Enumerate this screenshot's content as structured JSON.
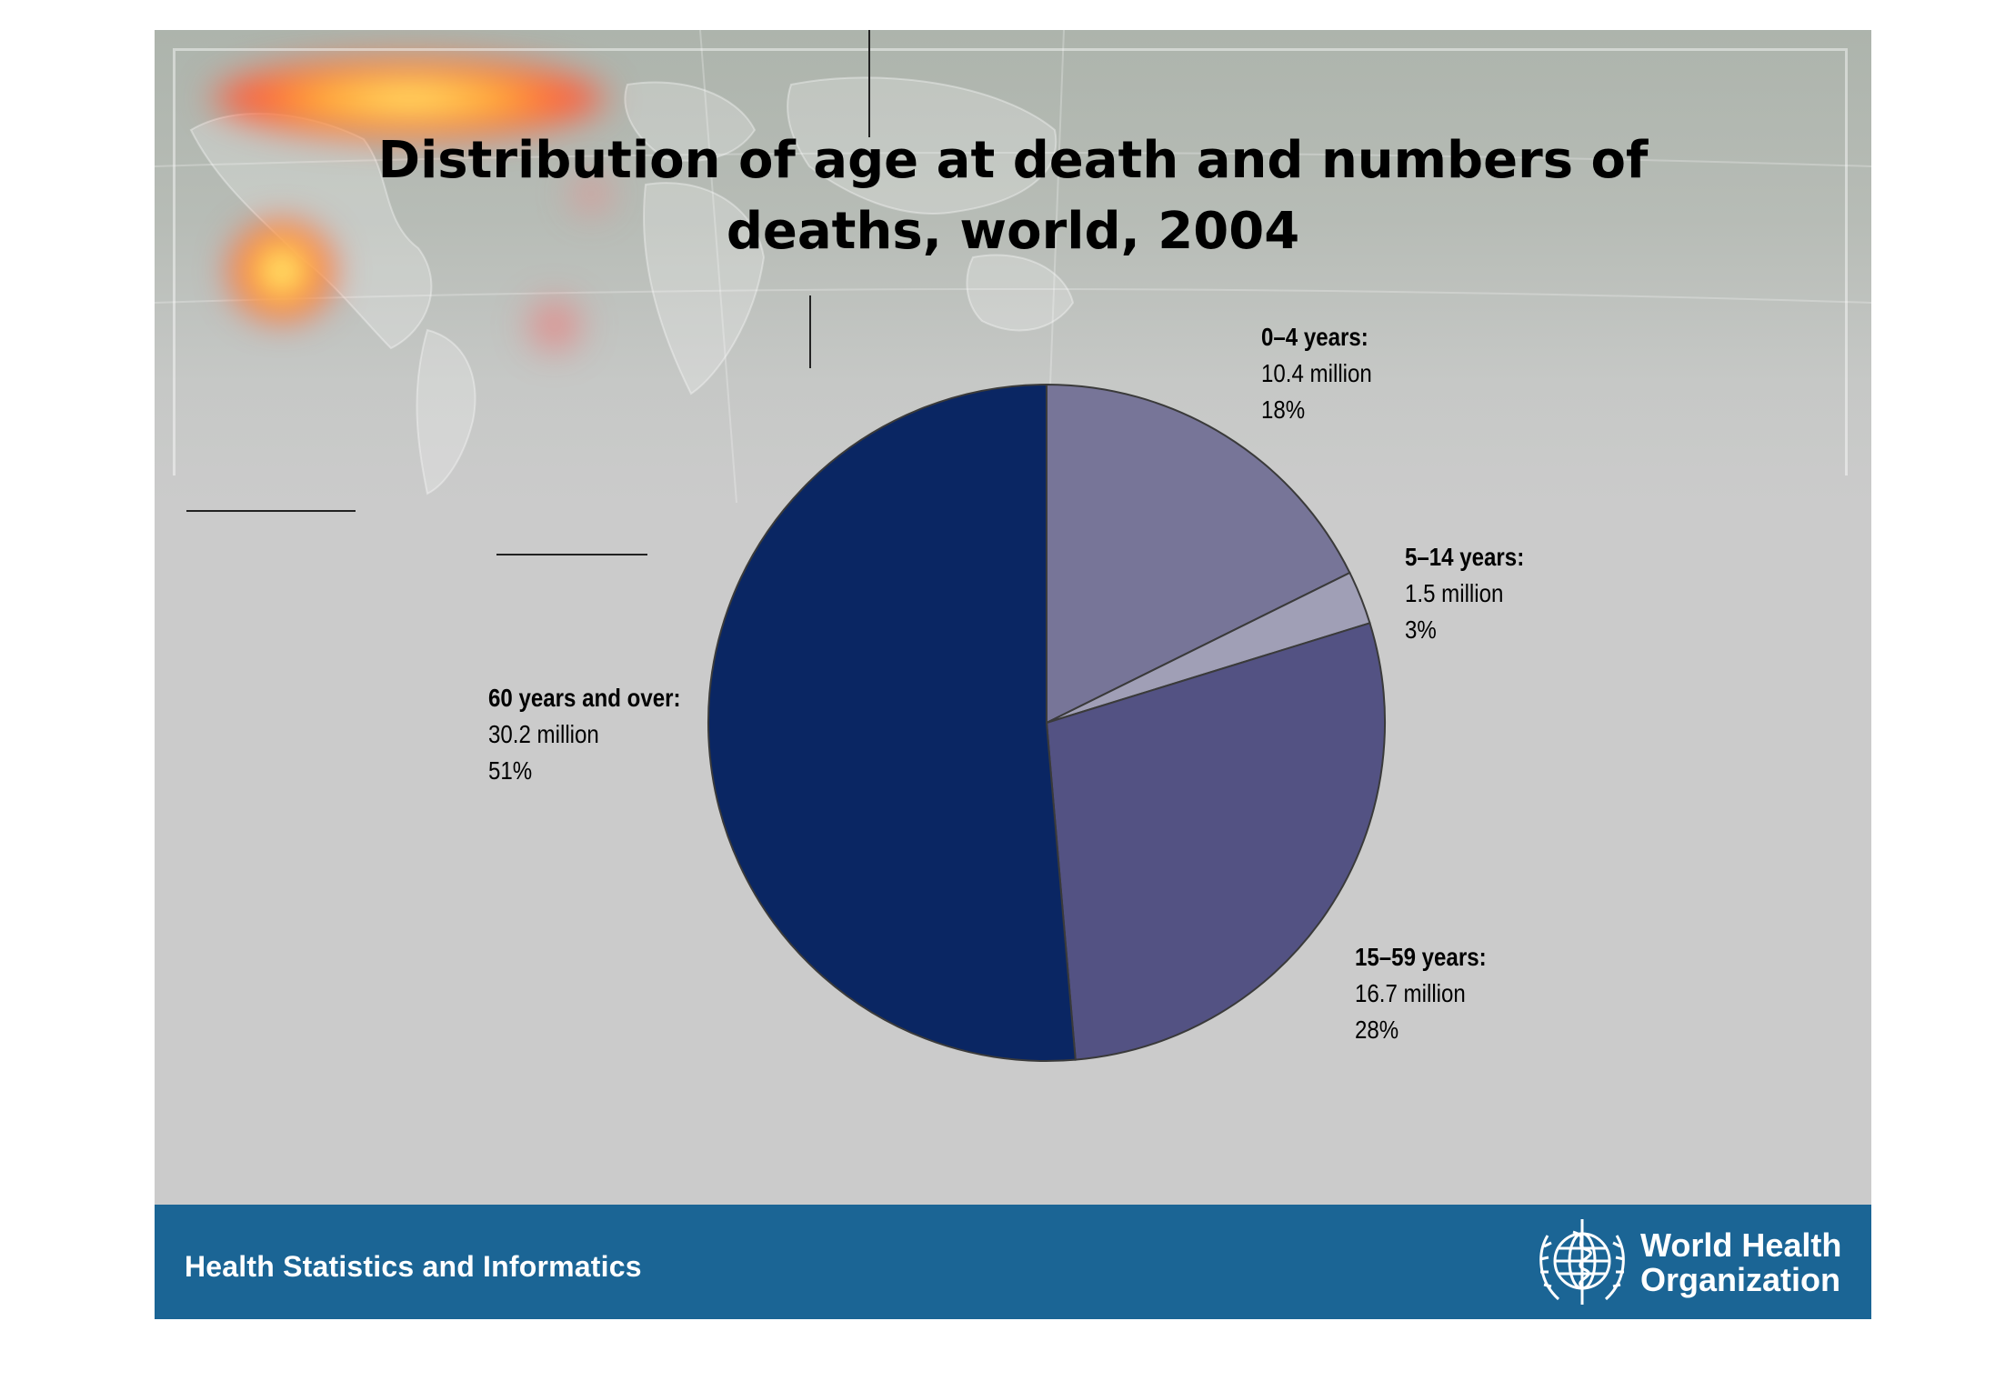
{
  "chart_data": {
    "type": "pie",
    "title": "Distribution of age at death and numbers of deaths, world, 2004",
    "title_lines": [
      "Distribution of age at death and numbers of",
      "deaths, world, 2004"
    ],
    "unit": "million",
    "slices": [
      {
        "label": "0–4 years:",
        "value": 10.4,
        "value_text": "10.4 million",
        "percent": 18,
        "percent_text": "18%",
        "color": "#777598"
      },
      {
        "label": "5–14 years:",
        "value": 1.5,
        "value_text": "1.5 million",
        "percent": 3,
        "percent_text": "3%",
        "color": "#a09fb6"
      },
      {
        "label": "15–59 years:",
        "value": 16.7,
        "value_text": "16.7 million",
        "percent": 28,
        "percent_text": "28%",
        "color": "#535283"
      },
      {
        "label": "60 years and over:",
        "value": 30.2,
        "value_text": "30.2 million",
        "percent": 51,
        "percent_text": "51%",
        "color": "#0a2663"
      }
    ],
    "start_angle_deg": 0,
    "direction": "clockwise",
    "legend": "none"
  },
  "footer": {
    "text": "Health Statistics and Informatics",
    "organization_line1": "World Health",
    "organization_line2": "Organization",
    "logo": "who-emblem-icon"
  },
  "colors": {
    "background": "#cbcbcb",
    "footer": "#1b6595",
    "banner": "#adb4ac"
  }
}
